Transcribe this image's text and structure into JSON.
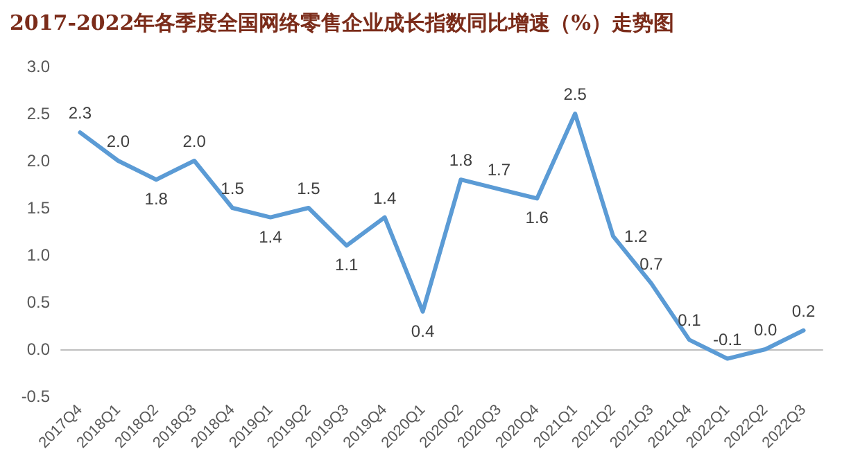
{
  "chart_data": {
    "type": "line",
    "title": "2017-2022年各季度全国网络零售企业成长指数同比增速（%）走势图",
    "categories": [
      "2017Q4",
      "2018Q1",
      "2018Q2",
      "2018Q3",
      "2018Q4",
      "2019Q1",
      "2019Q2",
      "2019Q3",
      "2019Q4",
      "2020Q1",
      "2020Q2",
      "2020Q3",
      "2020Q4",
      "2021Q1",
      "2021Q2",
      "2021Q3",
      "2021Q4",
      "2022Q1",
      "2022Q2",
      "2022Q3"
    ],
    "series": [
      {
        "color": "#5b9bd5",
        "values": [
          2.3,
          2.0,
          1.8,
          2.0,
          1.5,
          1.4,
          1.5,
          1.1,
          1.4,
          0.4,
          1.8,
          1.7,
          1.6,
          2.5,
          1.2,
          0.7,
          0.1,
          -0.1,
          0.0,
          0.2
        ],
        "value_labels": [
          "2.3",
          "2.0",
          "1.8",
          "2.0",
          "1.5",
          "1.4",
          "1.5",
          "1.1",
          "1.4",
          "0.4",
          "1.8",
          "1.7",
          "1.6",
          "2.5",
          "1.2",
          "0.7",
          "0.1",
          "-0.1",
          "0.0",
          "0.2"
        ]
      }
    ],
    "ylim": [
      -0.5,
      3.0
    ],
    "yticks": [
      {
        "value": -0.5,
        "label": "-0.5"
      },
      {
        "value": 0,
        "label": "0.0"
      },
      {
        "value": 0.5,
        "label": "0.5"
      },
      {
        "value": 1,
        "label": "1.0"
      },
      {
        "value": 1.5,
        "label": "1.5"
      },
      {
        "value": 2,
        "label": "2.0"
      },
      {
        "value": 2.5,
        "label": "2.5"
      },
      {
        "value": 3,
        "label": "3.0"
      }
    ],
    "marker": "none",
    "line_style": "solid"
  }
}
